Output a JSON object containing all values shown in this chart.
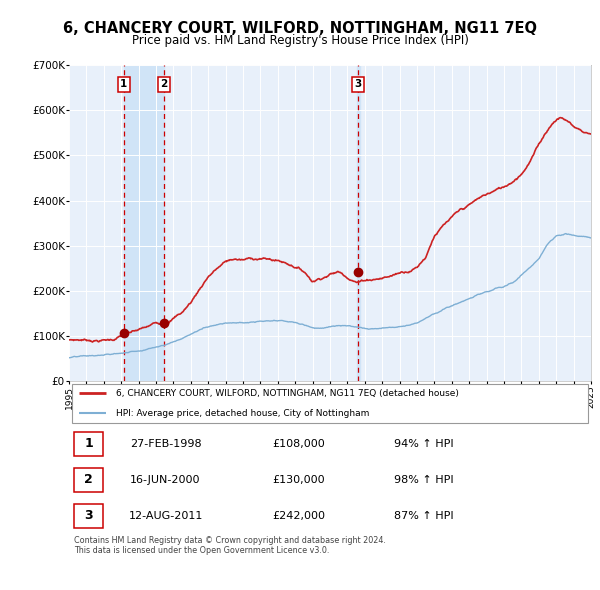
{
  "title": "6, CHANCERY COURT, WILFORD, NOTTINGHAM, NG11 7EQ",
  "subtitle": "Price paid vs. HM Land Registry's House Price Index (HPI)",
  "title_fontsize": 10.5,
  "subtitle_fontsize": 8.5,
  "background_color": "#ffffff",
  "plot_bg_color": "#e8f0fa",
  "grid_color": "#ffffff",
  "sale_dates": [
    1998.15,
    2000.46,
    2011.62
  ],
  "sale_prices": [
    108000,
    130000,
    242000
  ],
  "sale_labels": [
    "1",
    "2",
    "3"
  ],
  "vline_color": "#cc0000",
  "sale_dot_color": "#990000",
  "hpi_line_color": "#7eafd4",
  "price_line_color": "#cc2222",
  "ylim": [
    0,
    700000
  ],
  "xlim": [
    1995,
    2025
  ],
  "yticks": [
    0,
    100000,
    200000,
    300000,
    400000,
    500000,
    600000,
    700000
  ],
  "ytick_labels": [
    "£0",
    "£100K",
    "£200K",
    "£300K",
    "£400K",
    "£500K",
    "£600K",
    "£700K"
  ],
  "xticks": [
    1995,
    1996,
    1997,
    1998,
    1999,
    2000,
    2001,
    2002,
    2003,
    2004,
    2005,
    2006,
    2007,
    2008,
    2009,
    2010,
    2011,
    2012,
    2013,
    2014,
    2015,
    2016,
    2017,
    2018,
    2019,
    2020,
    2021,
    2022,
    2023,
    2024,
    2025
  ],
  "legend_property_label": "6, CHANCERY COURT, WILFORD, NOTTINGHAM, NG11 7EQ (detached house)",
  "legend_hpi_label": "HPI: Average price, detached house, City of Nottingham",
  "table_rows": [
    {
      "num": "1",
      "date": "27-FEB-1998",
      "price": "£108,000",
      "hpi": "94% ↑ HPI"
    },
    {
      "num": "2",
      "date": "16-JUN-2000",
      "price": "£130,000",
      "hpi": "98% ↑ HPI"
    },
    {
      "num": "3",
      "date": "12-AUG-2011",
      "price": "£242,000",
      "hpi": "87% ↑ HPI"
    }
  ],
  "footer_text": "Contains HM Land Registry data © Crown copyright and database right 2024.\nThis data is licensed under the Open Government Licence v3.0.",
  "label_box_edge": "#cc0000",
  "highlight_band_color": "#d0e4f7"
}
